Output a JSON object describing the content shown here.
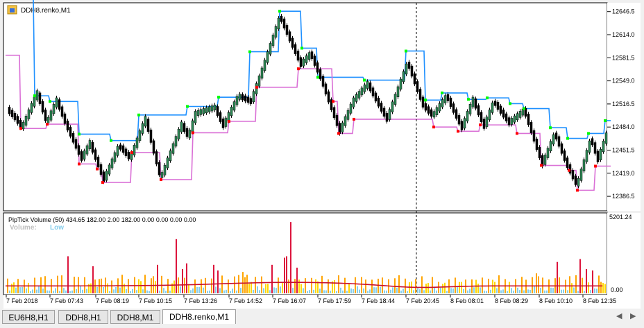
{
  "symbol_label": "DDH8.renko,M1",
  "main_axis": {
    "ticks": [
      "12646.5",
      "12614.0",
      "12581.5",
      "12549.0",
      "12516.5",
      "12484.0",
      "12451.5",
      "12419.0",
      "12386.5"
    ]
  },
  "indicator": {
    "header": "PipTick Volume  (50) 434.65 182.00 2.00 182.00 0.00 0.00 0.00 0.00",
    "volume_label": "Volume:",
    "volume_value": "Low",
    "axis_max": "5201.24",
    "axis_min": "0.00"
  },
  "time_axis": [
    "7 Feb 2018",
    "7 Feb 07:43",
    "7 Feb 08:19",
    "7 Feb 10:15",
    "7 Feb 13:26",
    "7 Feb 14:52",
    "7 Feb 16:07",
    "7 Feb 17:59",
    "7 Feb 18:44",
    "7 Feb 20:45",
    "8 Feb 08:01",
    "8 Feb 08:29",
    "8 Feb 10:10",
    "8 Feb 12:35"
  ],
  "tabs": [
    "EU6H8,H1",
    "DDH8,H1",
    "DDH8,M1",
    "DDH8.renko,M1"
  ],
  "active_tab": 3,
  "colors": {
    "upper_band": "#1e90ff",
    "lower_band": "#da70d6",
    "bull_candle": "#2e8b57",
    "bear_candle": "#000000",
    "up_dot": "#00ff00",
    "down_dot": "#ff0000",
    "volume_high": "#dc143c",
    "volume_mid": "#ffa500",
    "volume_low": "#ffd700",
    "volume_min": "#87ceeb",
    "volume_avg": "#c8102e"
  },
  "chart_data": {
    "type": "line",
    "price_range": [
      12370,
      12655
    ],
    "upper_band": [
      [
        0,
        12665
      ],
      [
        40,
        12665
      ],
      [
        42,
        12528
      ],
      [
        62,
        12528
      ],
      [
        64,
        12520
      ],
      [
        104,
        12520
      ],
      [
        106,
        12474
      ],
      [
        150,
        12474
      ],
      [
        152,
        12465
      ],
      [
        190,
        12465
      ],
      [
        192,
        12501
      ],
      [
        260,
        12501
      ],
      [
        262,
        12513
      ],
      [
        305,
        12513
      ],
      [
        307,
        12526
      ],
      [
        350,
        12526
      ],
      [
        352,
        12590
      ],
      [
        393,
        12590
      ],
      [
        395,
        12647
      ],
      [
        425,
        12647
      ],
      [
        427,
        12595
      ],
      [
        448,
        12595
      ],
      [
        450,
        12554
      ],
      [
        515,
        12554
      ],
      [
        517,
        12550
      ],
      [
        575,
        12550
      ],
      [
        577,
        12591
      ],
      [
        603,
        12591
      ],
      [
        605,
        12522
      ],
      [
        627,
        12522
      ],
      [
        629,
        12532
      ],
      [
        665,
        12532
      ],
      [
        667,
        12523
      ],
      [
        692,
        12523
      ],
      [
        694,
        12525
      ],
      [
        725,
        12525
      ],
      [
        727,
        12517
      ],
      [
        745,
        12517
      ],
      [
        747,
        12510
      ],
      [
        783,
        12510
      ],
      [
        785,
        12483
      ],
      [
        808,
        12483
      ],
      [
        810,
        12468
      ],
      [
        838,
        12468
      ],
      [
        840,
        12475
      ],
      [
        862,
        12475
      ],
      [
        864,
        12493
      ],
      [
        872,
        12493
      ]
    ],
    "lower_band": [
      [
        0,
        12585
      ],
      [
        20,
        12585
      ],
      [
        22,
        12482
      ],
      [
        58,
        12482
      ],
      [
        60,
        12488
      ],
      [
        104,
        12488
      ],
      [
        106,
        12432
      ],
      [
        130,
        12432
      ],
      [
        132,
        12425
      ],
      [
        138,
        12425
      ],
      [
        140,
        12406
      ],
      [
        180,
        12406
      ],
      [
        182,
        12448
      ],
      [
        216,
        12448
      ],
      [
        218,
        12448
      ],
      [
        222,
        12448
      ],
      [
        224,
        12410
      ],
      [
        268,
        12410
      ],
      [
        270,
        12476
      ],
      [
        320,
        12476
      ],
      [
        322,
        12492
      ],
      [
        360,
        12492
      ],
      [
        362,
        12540
      ],
      [
        420,
        12540
      ],
      [
        422,
        12566
      ],
      [
        470,
        12566
      ],
      [
        472,
        12520
      ],
      [
        478,
        12520
      ],
      [
        480,
        12475
      ],
      [
        500,
        12475
      ],
      [
        502,
        12495
      ],
      [
        590,
        12495
      ],
      [
        592,
        12495
      ],
      [
        615,
        12495
      ],
      [
        617,
        12484
      ],
      [
        650,
        12484
      ],
      [
        652,
        12478
      ],
      [
        682,
        12478
      ],
      [
        684,
        12487
      ],
      [
        735,
        12487
      ],
      [
        737,
        12475
      ],
      [
        770,
        12475
      ],
      [
        772,
        12430
      ],
      [
        810,
        12430
      ],
      [
        812,
        12423
      ],
      [
        822,
        12423
      ],
      [
        824,
        12395
      ],
      [
        848,
        12395
      ],
      [
        850,
        12429
      ],
      [
        872,
        12429
      ]
    ],
    "volume_max": 5201.24
  }
}
